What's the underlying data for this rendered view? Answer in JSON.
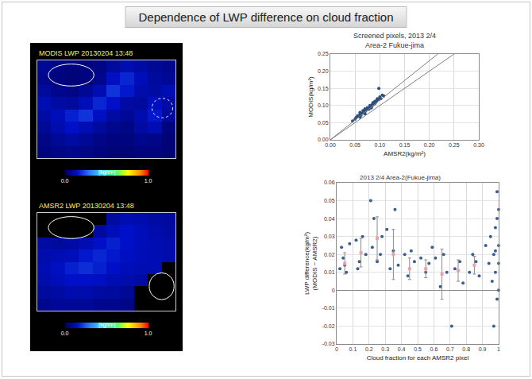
{
  "title": "Dependence of LWP difference on cloud fraction",
  "chart_data": [
    {
      "type": "heatmap",
      "title": "MODIS LWP 20130204 13:48",
      "tick_labels": false,
      "cells": [
        [
          0.08,
          0.06,
          0.05,
          0.05,
          0.06,
          0.09,
          0.12,
          0.1,
          0.08,
          0.07
        ],
        [
          0.07,
          0.05,
          0.04,
          0.05,
          0.07,
          0.14,
          0.18,
          0.13,
          0.09,
          0.08
        ],
        [
          0.09,
          0.07,
          0.06,
          0.08,
          0.12,
          0.2,
          0.16,
          0.11,
          0.1,
          0.12
        ],
        [
          0.12,
          0.1,
          0.09,
          0.13,
          0.18,
          0.15,
          0.1,
          0.09,
          0.14,
          0.1
        ],
        [
          0.1,
          0.13,
          0.17,
          0.2,
          0.14,
          0.1,
          0.08,
          0.11,
          0.16,
          0.09
        ],
        [
          0.08,
          0.11,
          0.15,
          0.12,
          0.09,
          0.07,
          0.06,
          0.1,
          0.12,
          0.05
        ],
        [
          0.06,
          0.08,
          0.1,
          0.08,
          0.06,
          0.05,
          0.05,
          0.07,
          0.06,
          0.04
        ],
        [
          0.05,
          0.06,
          0.07,
          0.06,
          0.05,
          0.04,
          0.04,
          0.05,
          0.05,
          0.04
        ]
      ],
      "colorbar": {
        "range": [
          0,
          1
        ],
        "ticks": [
          {
            "value": 0,
            "label": "0.0"
          },
          {
            "value": 1,
            "label": "1.0"
          }
        ],
        "label": "[kg/m²]"
      }
    },
    {
      "type": "heatmap",
      "title": "AMSR2 LWP 20130204 13:48",
      "tick_labels": false,
      "cells": [
        [
          null,
          null,
          null,
          null,
          null,
          0.1,
          0.12,
          0.11,
          0.1,
          0.09
        ],
        [
          null,
          null,
          null,
          null,
          0.09,
          0.13,
          0.15,
          0.13,
          0.11,
          0.1
        ],
        [
          0.1,
          0.09,
          0.1,
          0.12,
          0.15,
          0.17,
          0.15,
          0.13,
          0.12,
          0.11
        ],
        [
          0.11,
          0.12,
          0.13,
          0.16,
          0.18,
          0.16,
          0.14,
          0.13,
          0.12,
          0.11
        ],
        [
          0.12,
          0.14,
          0.17,
          0.19,
          0.17,
          0.15,
          0.13,
          0.12,
          0.12,
          null
        ],
        [
          0.11,
          0.13,
          0.15,
          0.15,
          0.14,
          0.12,
          0.11,
          0.1,
          null,
          null
        ],
        [
          0.09,
          0.1,
          0.11,
          0.11,
          0.1,
          0.09,
          0.08,
          null,
          null,
          null
        ],
        [
          0.07,
          0.08,
          0.08,
          0.08,
          0.07,
          0.07,
          0.06,
          null,
          null,
          null
        ]
      ],
      "colorbar": {
        "range": [
          0,
          1
        ],
        "ticks": [
          {
            "value": 0,
            "label": "0.0"
          },
          {
            "value": 1,
            "label": "1.0"
          }
        ],
        "label": "[kg/m²]"
      }
    },
    {
      "type": "scatter",
      "title": "Screened pixels, 2013 2/4",
      "subtitle": "Area-2 Fukue-jima",
      "x_label": "AMSR2(kg/m²)",
      "y_label": "MODIS(kg/m²)",
      "grid": true,
      "xlim": [
        0,
        0.3
      ],
      "xticks": [
        {
          "value": 0,
          "label": "0.00"
        },
        {
          "value": 0.05,
          "label": "0.05"
        },
        {
          "value": 0.1,
          "label": "0.10"
        },
        {
          "value": 0.15,
          "label": "0.15"
        },
        {
          "value": 0.2,
          "label": "0.20"
        },
        {
          "value": 0.25,
          "label": "0.25"
        },
        {
          "value": 0.3,
          "label": "0.30"
        }
      ],
      "ylim": [
        0,
        0.25
      ],
      "yticks": [
        {
          "value": 0,
          "label": "0.00"
        },
        {
          "value": 0.05,
          "label": "0.05"
        },
        {
          "value": 0.1,
          "label": "0.10"
        },
        {
          "value": 0.15,
          "label": "0.15"
        },
        {
          "value": 0.2,
          "label": "0.20"
        },
        {
          "value": 0.25,
          "label": "0.25"
        }
      ],
      "series": [
        {
          "type": "scatter",
          "marker": "circle",
          "color": "#2c4f7c",
          "x": [
            0.045,
            0.05,
            0.052,
            0.055,
            0.058,
            0.06,
            0.06,
            0.062,
            0.065,
            0.066,
            0.068,
            0.07,
            0.07,
            0.072,
            0.074,
            0.075,
            0.076,
            0.078,
            0.08,
            0.08,
            0.082,
            0.084,
            0.085,
            0.086,
            0.088,
            0.09,
            0.09,
            0.092,
            0.094,
            0.095,
            0.097,
            0.1,
            0.102,
            0.105,
            0.108,
            0.06,
            0.07,
            0.083,
            0.078,
            0.098
          ],
          "values": [
            0.055,
            0.06,
            0.065,
            0.07,
            0.068,
            0.075,
            0.08,
            0.072,
            0.078,
            0.085,
            0.08,
            0.082,
            0.09,
            0.086,
            0.088,
            0.094,
            0.09,
            0.092,
            0.095,
            0.1,
            0.098,
            0.102,
            0.1,
            0.108,
            0.104,
            0.106,
            0.112,
            0.11,
            0.115,
            0.12,
            0.118,
            0.125,
            0.12,
            0.13,
            0.128,
            0.066,
            0.076,
            0.093,
            0.089,
            0.15
          ]
        },
        {
          "type": "line",
          "line_style": "solid",
          "color": "#7f7f7f",
          "x": [
            0,
            0.25
          ],
          "values": [
            0,
            0.25
          ]
        },
        {
          "type": "line",
          "line_style": "solid",
          "color": "#7f7f7f",
          "x": [
            0,
            0.217
          ],
          "values": [
            0,
            0.25
          ]
        }
      ]
    },
    {
      "type": "scatter",
      "title": "2013 2/4 Area-2(Fukue-jima)",
      "x_label": "Cloud fraction for each AMSR2 pixel",
      "y_label": [
        "LWP difference(kg/m²)",
        "(MODIS − AMSR2)"
      ],
      "grid": true,
      "xlim": [
        0,
        1
      ],
      "xticks": [
        0,
        0.1,
        0.2,
        0.3,
        0.4,
        0.5,
        0.6,
        0.7,
        0.8,
        0.9,
        1
      ],
      "ylim": [
        -0.03,
        0.06
      ],
      "yticks": [
        -0.03,
        -0.02,
        -0.01,
        0,
        0.01,
        0.02,
        0.03,
        0.04,
        0.05,
        0.06
      ],
      "series": [
        {
          "type": "scatter",
          "marker": "circle",
          "color": "#3a5f8f",
          "x": [
            0.02,
            0.03,
            0.04,
            0.06,
            0.08,
            0.05,
            0.12,
            0.14,
            0.16,
            0.18,
            0.13,
            0.21,
            0.23,
            0.25,
            0.27,
            0.28,
            0.22,
            0.31,
            0.33,
            0.36,
            0.38,
            0.35,
            0.42,
            0.44,
            0.46,
            0.48,
            0.52,
            0.55,
            0.57,
            0.59,
            0.61,
            0.64,
            0.66,
            0.68,
            0.71,
            0.73,
            0.76,
            0.78,
            0.82,
            0.84,
            0.86,
            0.88,
            0.92,
            0.94,
            0.95,
            0.96,
            0.97,
            0.98,
            0.98,
            0.99,
            0.99,
            1.0,
            1.0,
            1.0,
            0.97,
            0.99,
            1.0,
            0.98
          ],
          "values": [
            0.012,
            0.024,
            0.018,
            0.01,
            0.026,
            0.014,
            0.028,
            0.016,
            0.03,
            0.02,
            0.012,
            0.05,
            0.04,
            0.016,
            0.02,
            0.03,
            0.024,
            0.034,
            0.012,
            0.045,
            0.014,
            0.022,
            0.02,
            0.008,
            0.022,
            0.016,
            0.018,
            0.01,
            0.015,
            0.024,
            0.018,
            0.002,
            0.02,
            0.01,
            -0.02,
            0.012,
            0.016,
            0.004,
            0.01,
            0.02,
            0.016,
            0.008,
            0.025,
            0.015,
            0.03,
            0.005,
            0.02,
            0.035,
            0.01,
            0.04,
            -0.005,
            0.025,
            0.045,
            0.015,
            -0.02,
            0.055,
            0.0,
            0.022
          ]
        },
        {
          "type": "scatter",
          "marker": "square",
          "color": "#eea0aa",
          "x": [
            0.05,
            0.15,
            0.25,
            0.35,
            0.45,
            0.55,
            0.65,
            0.75,
            0.85
          ],
          "values": [
            0.015,
            0.021,
            0.029,
            0.02,
            0.012,
            0.012,
            0.009,
            0.011,
            0.014
          ],
          "error": [
            0.006,
            0.008,
            0.012,
            0.014,
            0.006,
            0.005,
            0.014,
            0.006,
            0.005
          ]
        }
      ]
    }
  ]
}
